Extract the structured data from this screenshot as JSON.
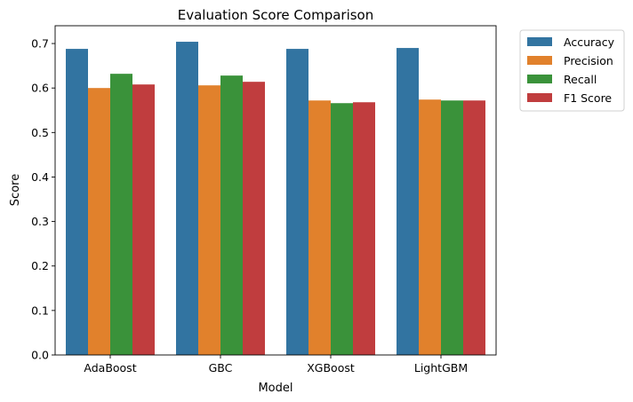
{
  "chart_data": {
    "type": "bar",
    "title": "Evaluation Score Comparison",
    "xlabel": "Model",
    "ylabel": "Score",
    "categories": [
      "AdaBoost",
      "GBC",
      "XGBoost",
      "LightGBM"
    ],
    "ylim": [
      0,
      0.74
    ],
    "yticks": [
      "0.0",
      "0.1",
      "0.2",
      "0.3",
      "0.4",
      "0.5",
      "0.6",
      "0.7"
    ],
    "grid": false,
    "legend_position": "outside-top-right",
    "series": [
      {
        "name": "Accuracy",
        "color": "#3274a1",
        "values": [
          0.688,
          0.704,
          0.688,
          0.69
        ]
      },
      {
        "name": "Precision",
        "color": "#e1812c",
        "values": [
          0.6,
          0.606,
          0.572,
          0.574
        ]
      },
      {
        "name": "Recall",
        "color": "#3a923a",
        "values": [
          0.632,
          0.628,
          0.566,
          0.572
        ]
      },
      {
        "name": "F1 Score",
        "color": "#c03d3e",
        "values": [
          0.608,
          0.614,
          0.568,
          0.572
        ]
      }
    ]
  }
}
